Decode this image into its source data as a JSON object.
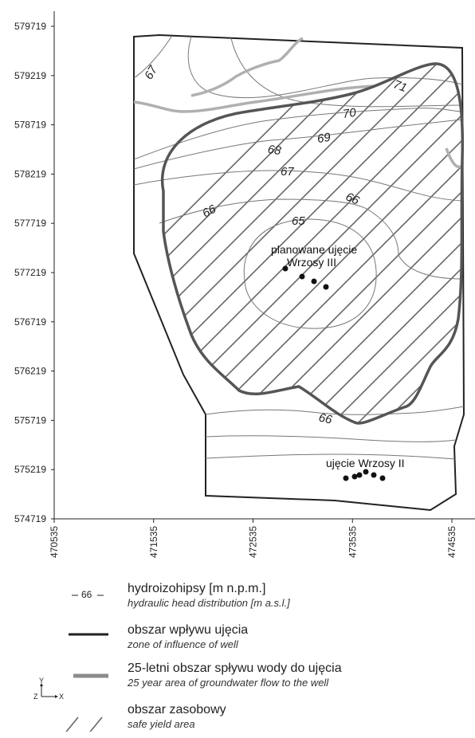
{
  "map": {
    "y_ticks": [
      "579719",
      "579219",
      "578719",
      "578219",
      "577719",
      "577219",
      "576719",
      "576219",
      "575719",
      "575219",
      "574719"
    ],
    "x_ticks": [
      "470535",
      "471535",
      "472535",
      "473535",
      "474535"
    ],
    "contour_labels": [
      "67",
      "71",
      "70",
      "69",
      "68",
      "67",
      "66",
      "66",
      "65",
      "66"
    ],
    "well_labels": {
      "planned_line1": "planowane ujęcie",
      "planned_line2": "Wrzosy III",
      "existing": "ujęcie Wrzosy II"
    },
    "colors": {
      "zone_of_influence": "#555555",
      "flow_area": "#b0b0b0",
      "safe_yield_hatch": "#555555",
      "contours": "#777777",
      "boundary": "#222222"
    }
  },
  "legend": {
    "contour_sample": "66",
    "items": [
      {
        "pl": "hydroizohipsy [m n.p.m.]",
        "en": "hydraulic head distribution [m a.s.l.]"
      },
      {
        "pl": "obszar wpływu ujęcia",
        "en": "zone of influence of well"
      },
      {
        "pl": "25-letni obszar spływu wody do ujęcia",
        "en": "25 year area of groundwater flow to the well"
      },
      {
        "pl": "obszar zasobowy",
        "en": "safe yield area"
      }
    ],
    "axes": {
      "y": "Y",
      "z": "Z",
      "x": "X"
    }
  }
}
